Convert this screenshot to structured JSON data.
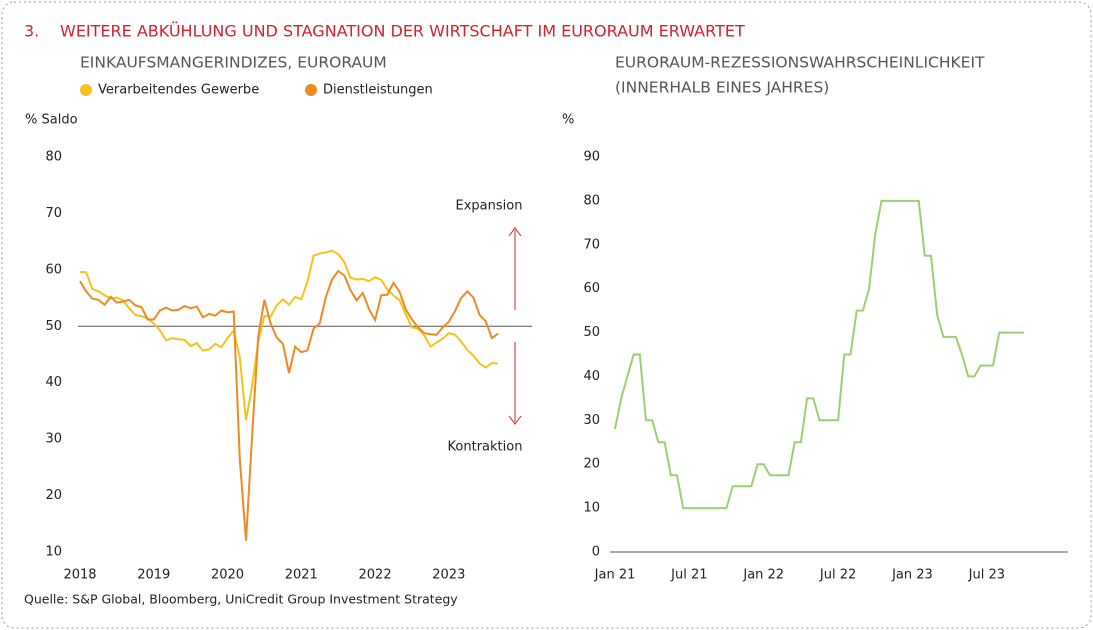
{
  "header": {
    "number": "3.",
    "title": "WEITERE ABKÜHLUNG UND STAGNATION DER WIRTSCHAFT IM EURORAUM ERWARTET"
  },
  "source": "Quelle: S&P Global, Bloomberg, UniCredit Group Investment Strategy",
  "chart_data": [
    {
      "type": "line",
      "title": [
        "EINKAUFSMANGERINDIZES, EURORAUM"
      ],
      "y_label": "% Saldo",
      "categories": [
        "2018",
        null,
        null,
        null,
        null,
        null,
        null,
        null,
        null,
        null,
        null,
        null,
        "2019",
        null,
        null,
        null,
        null,
        null,
        null,
        null,
        null,
        null,
        null,
        null,
        "2020",
        null,
        null,
        null,
        null,
        null,
        null,
        null,
        null,
        null,
        null,
        null,
        "2021",
        null,
        null,
        null,
        null,
        null,
        null,
        null,
        null,
        null,
        null,
        null,
        "2022",
        null,
        null,
        null,
        null,
        null,
        null,
        null,
        null,
        null,
        null,
        null,
        "2023",
        null,
        null,
        null,
        null,
        null,
        null,
        null,
        null
      ],
      "series": [
        {
          "name": "Verarbeitendes Gewerbe",
          "color": "#f5c21b",
          "values": [
            59.6,
            59.6,
            56.6,
            56.2,
            55.5,
            54.9,
            55.1,
            54.6,
            53.2,
            52.0,
            51.8,
            51.4,
            50.5,
            49.3,
            47.5,
            47.9,
            47.7,
            47.6,
            46.5,
            47.0,
            45.7,
            45.9,
            46.9,
            46.3,
            47.9,
            49.2,
            44.5,
            33.4,
            39.4,
            47.4,
            51.8,
            51.7,
            53.7,
            54.8,
            53.8,
            55.2,
            54.8,
            57.9,
            62.5,
            62.9,
            63.1,
            63.4,
            62.8,
            61.4,
            58.6,
            58.3,
            58.4,
            58.0,
            58.7,
            58.2,
            56.5,
            55.5,
            54.6,
            52.1,
            49.8,
            49.6,
            48.4,
            46.4,
            47.1,
            47.8,
            48.8,
            48.5,
            47.3,
            45.8,
            44.8,
            43.4,
            42.7,
            43.5,
            43.4
          ]
        },
        {
          "name": "Dienstleistungen",
          "color": "#ee8a22",
          "values": [
            58.0,
            56.2,
            54.9,
            54.7,
            53.8,
            55.2,
            54.2,
            54.4,
            54.7,
            53.7,
            53.4,
            51.2,
            51.2,
            52.8,
            53.3,
            52.8,
            52.9,
            53.6,
            53.2,
            53.5,
            51.6,
            52.2,
            51.9,
            52.8,
            52.5,
            52.6,
            26.4,
            12.0,
            30.5,
            48.3,
            54.7,
            50.5,
            48.0,
            46.9,
            41.7,
            46.4,
            45.4,
            45.7,
            49.6,
            50.5,
            55.2,
            58.3,
            59.8,
            59.0,
            56.4,
            54.6,
            55.9,
            53.1,
            51.1,
            55.5,
            55.6,
            57.7,
            56.1,
            53.0,
            51.2,
            49.8,
            48.8,
            48.6,
            48.5,
            49.8,
            50.8,
            52.7,
            55.0,
            56.2,
            55.1,
            52.0,
            50.9,
            47.9,
            48.7
          ]
        }
      ],
      "ylim": [
        10,
        80
      ],
      "yticks": [
        10,
        20,
        30,
        40,
        50,
        60,
        70,
        80
      ],
      "reference_line": 50,
      "annotations": [
        "Expansion",
        "Kontraktion"
      ],
      "legend": "top"
    },
    {
      "type": "line",
      "title": [
        "EURORAUM-REZESSIONSWAHRSCHEINLICHKEIT",
        "(INNERHALB EINES JAHRES)"
      ],
      "y_label": "%",
      "categories": [
        "Jan 21",
        null,
        null,
        null,
        null,
        null,
        null,
        null,
        null,
        null,
        null,
        null,
        "Jul 21",
        null,
        null,
        null,
        null,
        null,
        null,
        null,
        null,
        null,
        null,
        null,
        "Jan 22",
        null,
        null,
        null,
        null,
        null,
        null,
        null,
        null,
        null,
        null,
        null,
        "Jul 22",
        null,
        null,
        null,
        null,
        null,
        null,
        null,
        null,
        null,
        null,
        null,
        "Jan 23",
        null,
        null,
        null,
        null,
        null,
        null,
        null,
        null,
        null,
        null,
        null,
        "Jul 23",
        null,
        null,
        null,
        null,
        null,
        null
      ],
      "series": [
        {
          "color": "#9ccf72",
          "values": [
            28,
            35,
            40,
            45,
            45,
            30,
            30,
            25,
            25,
            17.5,
            17.5,
            10,
            10,
            10,
            10,
            10,
            10,
            10,
            10,
            15,
            15,
            15,
            15,
            20,
            20,
            17.5,
            17.5,
            17.5,
            17.5,
            25,
            25,
            35,
            35,
            30,
            30,
            30,
            30,
            45,
            45,
            55,
            55,
            60,
            72.5,
            80,
            80,
            80,
            80,
            80,
            80,
            80,
            67.5,
            67.5,
            54,
            49,
            49,
            49,
            45,
            40,
            40,
            42.5,
            42.5,
            42.5,
            50,
            50,
            50,
            50,
            50
          ]
        }
      ],
      "ylim": [
        0,
        90
      ],
      "yticks": [
        0,
        10,
        20,
        30,
        40,
        50,
        60,
        70,
        80,
        90
      ],
      "baseline": true
    }
  ]
}
